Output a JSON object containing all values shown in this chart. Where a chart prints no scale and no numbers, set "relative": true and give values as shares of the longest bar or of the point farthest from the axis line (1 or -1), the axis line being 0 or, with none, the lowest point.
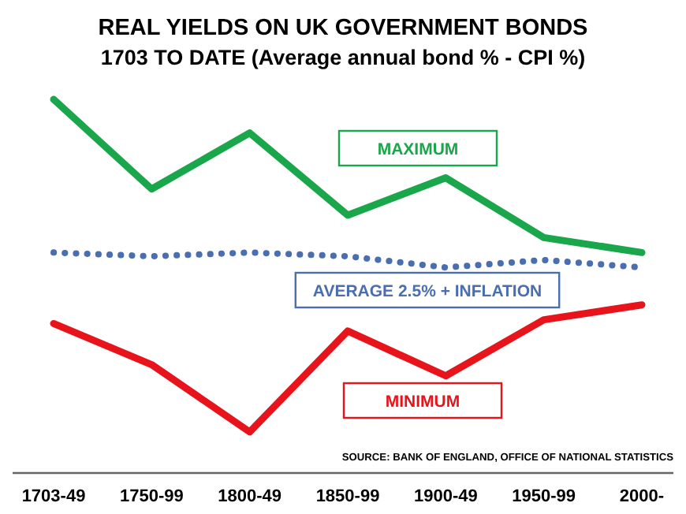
{
  "chart_data": {
    "type": "line",
    "title": "REAL YIELDS ON UK GOVERNMENT BONDS",
    "subtitle": "1703 TO DATE (Average annual bond % - CPI %)",
    "relative": true,
    "categories": [
      "1703-49",
      "1750-99",
      "1800-49",
      "1850-99",
      "1900-49",
      "1950-99",
      "2000-"
    ],
    "series": [
      {
        "name": "MAXIMUM",
        "color": "#1aa64a",
        "values": [
          1,
          0.76,
          0.91,
          0.69,
          0.79,
          0.63,
          0.59
        ]
      },
      {
        "name": "AVERAGE 2.5% + INFLATION",
        "color": "#4a6eb0",
        "line_style": "dotted",
        "values": [
          0.59,
          0.58,
          0.59,
          0.58,
          0.55,
          0.57,
          0.55
        ]
      },
      {
        "name": "MINIMUM",
        "color": "#e8141b",
        "values": [
          0.4,
          0.29,
          0.11,
          0.38,
          0.26,
          0.41,
          0.45
        ]
      }
    ],
    "annotations": [
      "SOURCE: BANK OF ENGLAND, OFFICE OF NATIONAL STATISTICS"
    ]
  }
}
